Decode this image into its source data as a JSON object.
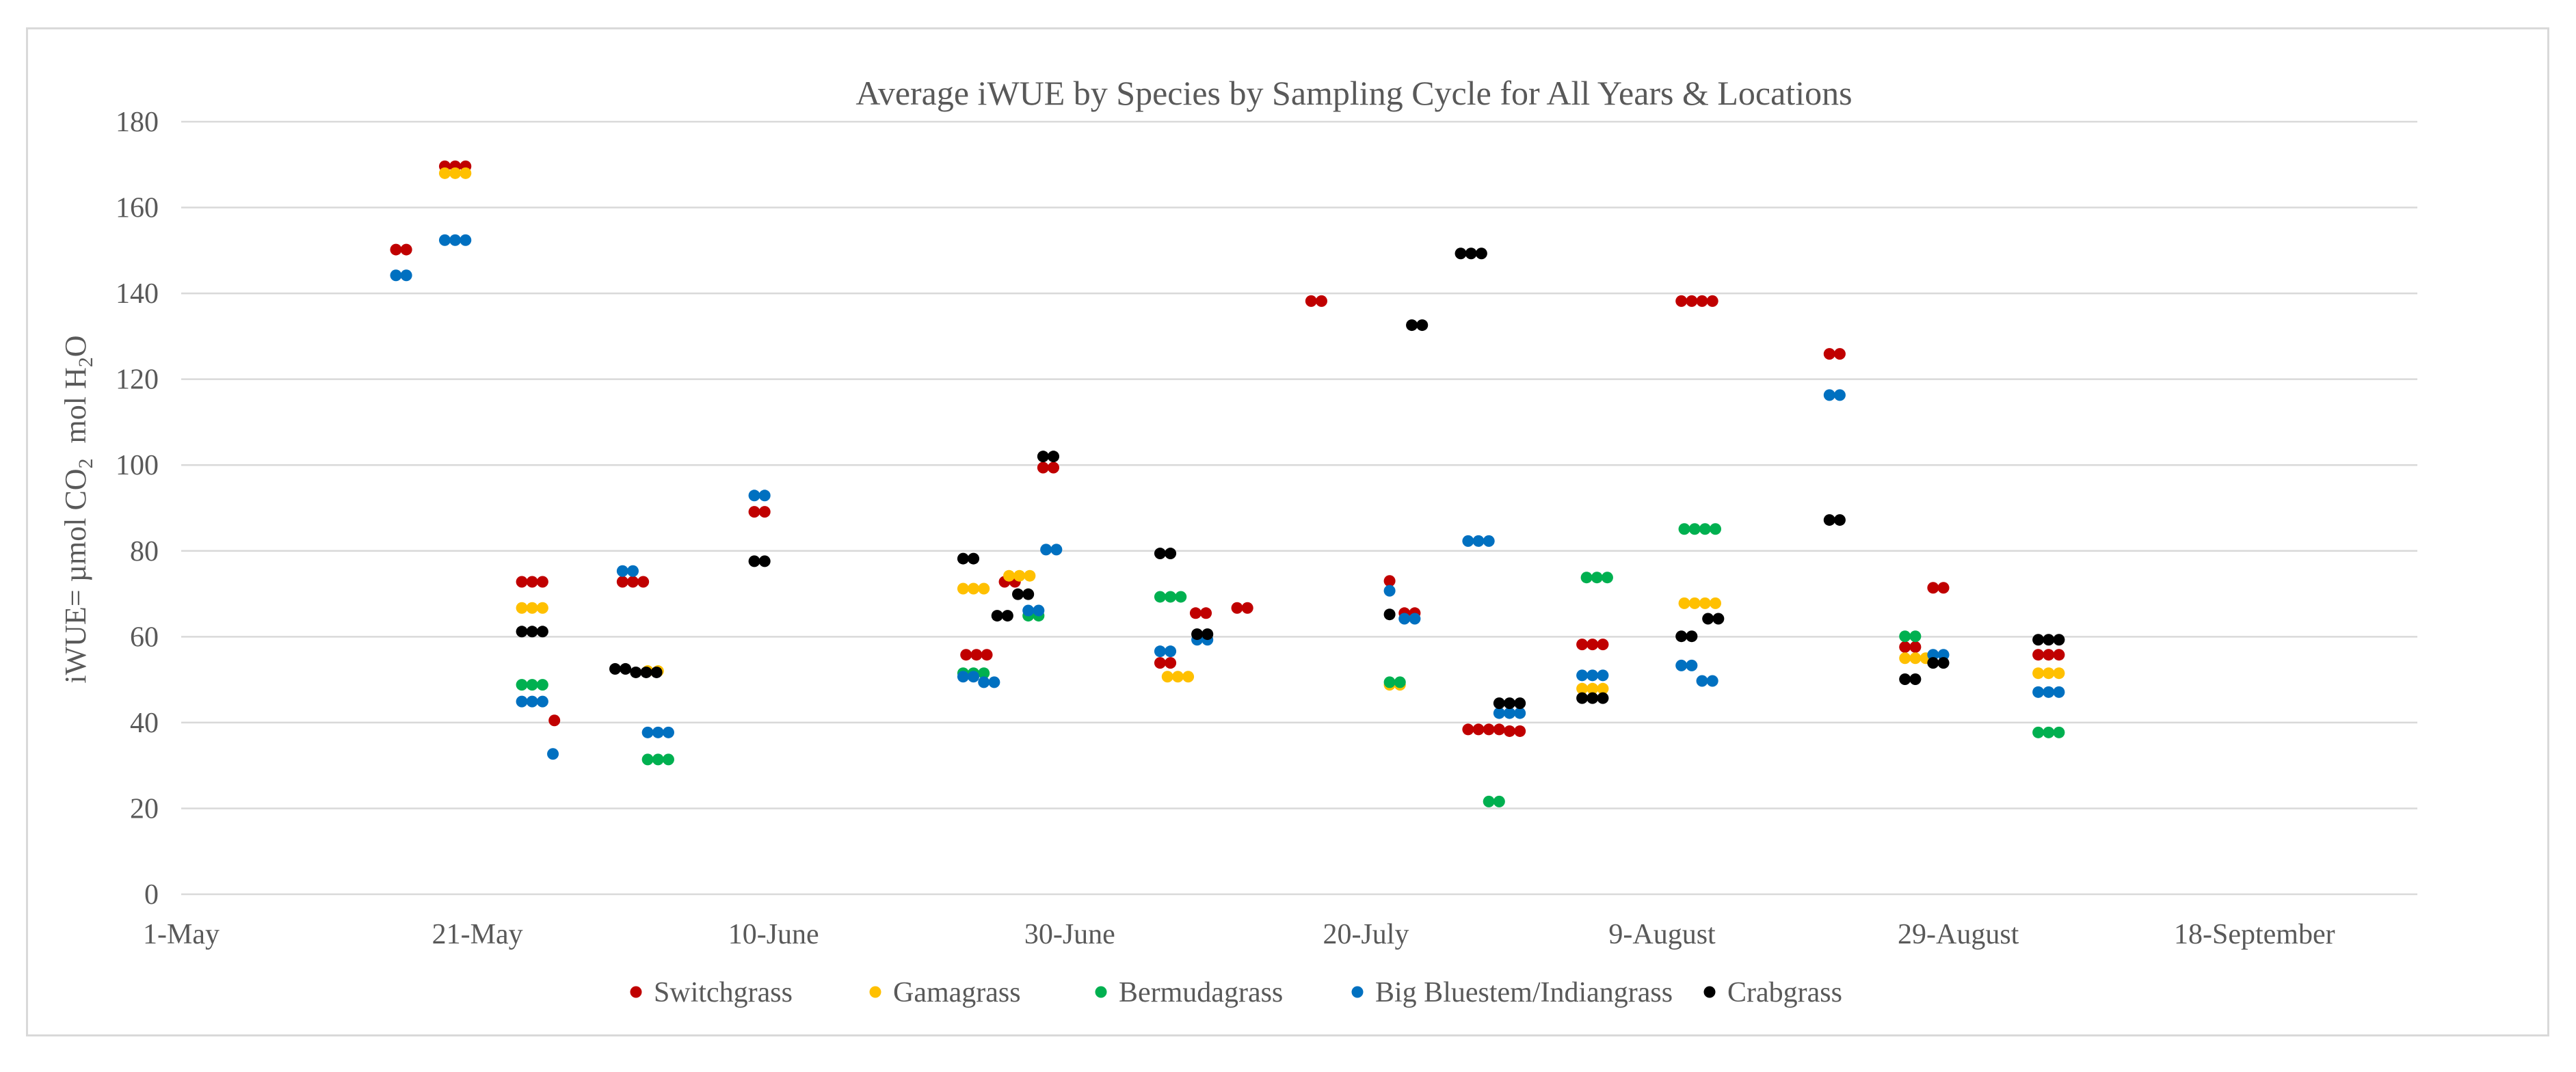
{
  "chart_data": {
    "type": "scatter",
    "title": "Average iWUE by Species by Sampling Cycle for All Years & Locations",
    "ylabel": {
      "prefix": "iWUE= µmol CO",
      "sub1": "2",
      "middle": "  mol H",
      "sub2": "2",
      "suffix": "O"
    },
    "ylim": [
      0,
      180
    ],
    "yticks": [
      0,
      20,
      40,
      60,
      80,
      100,
      120,
      140,
      160,
      180
    ],
    "x_tick_labels": [
      "1-May",
      "21-May",
      "10-June",
      "30-June",
      "20-July",
      "9-August",
      "29-August",
      "18-September"
    ],
    "x_tick_days": [
      0,
      20,
      40,
      60,
      80,
      100,
      120,
      140
    ],
    "xlim": [
      0,
      151
    ],
    "grid": true,
    "legend_position": "bottom",
    "series": [
      {
        "name": "Switchgrass",
        "color": "#c00000",
        "points": [
          [
            14.5,
            150.2
          ],
          [
            15.2,
            150.2
          ],
          [
            17.8,
            169.6
          ],
          [
            18.5,
            169.6
          ],
          [
            19.2,
            169.6
          ],
          [
            23.0,
            72.8
          ],
          [
            23.7,
            72.8
          ],
          [
            24.4,
            72.8
          ],
          [
            25.2,
            40.5
          ],
          [
            29.8,
            72.8
          ],
          [
            30.5,
            72.8
          ],
          [
            31.2,
            72.8
          ],
          [
            38.7,
            89.1
          ],
          [
            39.4,
            89.1
          ],
          [
            53.0,
            55.8
          ],
          [
            53.7,
            55.8
          ],
          [
            54.4,
            55.8
          ],
          [
            55.6,
            72.8
          ],
          [
            56.3,
            72.8
          ],
          [
            58.2,
            99.4
          ],
          [
            58.9,
            99.4
          ],
          [
            66.1,
            53.9
          ],
          [
            66.8,
            53.9
          ],
          [
            68.5,
            65.5
          ],
          [
            69.2,
            65.5
          ],
          [
            71.3,
            66.7
          ],
          [
            72.0,
            66.7
          ],
          [
            76.3,
            138.2
          ],
          [
            77.0,
            138.2
          ],
          [
            81.6,
            73.0
          ],
          [
            82.6,
            65.5
          ],
          [
            83.3,
            65.5
          ],
          [
            86.9,
            38.4
          ],
          [
            87.6,
            38.4
          ],
          [
            88.3,
            38.4
          ],
          [
            89.0,
            38.4
          ],
          [
            89.7,
            38.0
          ],
          [
            90.4,
            38.0
          ],
          [
            94.6,
            58.2
          ],
          [
            95.3,
            58.2
          ],
          [
            96.0,
            58.2
          ],
          [
            101.3,
            138.2
          ],
          [
            102.0,
            138.2
          ],
          [
            102.7,
            138.2
          ],
          [
            103.4,
            138.2
          ],
          [
            111.3,
            125.9
          ],
          [
            112.0,
            125.9
          ],
          [
            116.4,
            57.6
          ],
          [
            117.1,
            57.6
          ],
          [
            118.3,
            71.4
          ],
          [
            119.0,
            71.4
          ],
          [
            125.4,
            55.8
          ],
          [
            126.1,
            55.8
          ],
          [
            126.8,
            55.8
          ]
        ]
      },
      {
        "name": "Gamagrass",
        "color": "#ffc000",
        "points": [
          [
            17.8,
            168.0
          ],
          [
            18.5,
            168.0
          ],
          [
            19.2,
            168.0
          ],
          [
            23.0,
            66.7
          ],
          [
            23.7,
            66.7
          ],
          [
            24.4,
            66.7
          ],
          [
            31.5,
            52.0
          ],
          [
            32.2,
            52.0
          ],
          [
            52.8,
            71.2
          ],
          [
            53.5,
            71.2
          ],
          [
            54.2,
            71.2
          ],
          [
            55.9,
            74.2
          ],
          [
            56.6,
            74.2
          ],
          [
            57.3,
            74.2
          ],
          [
            66.6,
            50.7
          ],
          [
            67.3,
            50.7
          ],
          [
            68.0,
            50.7
          ],
          [
            81.6,
            48.8
          ],
          [
            82.3,
            48.8
          ],
          [
            94.6,
            47.9
          ],
          [
            95.3,
            47.9
          ],
          [
            96.0,
            47.9
          ],
          [
            101.5,
            67.8
          ],
          [
            102.2,
            67.8
          ],
          [
            102.9,
            67.8
          ],
          [
            103.6,
            67.8
          ],
          [
            116.4,
            55.0
          ],
          [
            117.1,
            55.0
          ],
          [
            117.8,
            55.0
          ],
          [
            125.4,
            51.5
          ],
          [
            126.1,
            51.5
          ],
          [
            126.8,
            51.5
          ]
        ]
      },
      {
        "name": "Bermudagrass",
        "color": "#00b050",
        "points": [
          [
            23.0,
            48.8
          ],
          [
            23.7,
            48.8
          ],
          [
            24.4,
            48.8
          ],
          [
            31.5,
            31.4
          ],
          [
            32.2,
            31.4
          ],
          [
            32.9,
            31.4
          ],
          [
            52.8,
            51.5
          ],
          [
            53.5,
            51.5
          ],
          [
            54.2,
            51.5
          ],
          [
            57.2,
            64.9
          ],
          [
            57.9,
            64.9
          ],
          [
            66.1,
            69.3
          ],
          [
            66.8,
            69.3
          ],
          [
            67.5,
            69.3
          ],
          [
            81.6,
            49.4
          ],
          [
            82.3,
            49.4
          ],
          [
            88.3,
            21.6
          ],
          [
            89.0,
            21.6
          ],
          [
            94.9,
            73.8
          ],
          [
            95.6,
            73.8
          ],
          [
            96.3,
            73.8
          ],
          [
            101.5,
            85.1
          ],
          [
            102.2,
            85.1
          ],
          [
            102.9,
            85.1
          ],
          [
            103.6,
            85.1
          ],
          [
            116.4,
            60.1
          ],
          [
            117.1,
            60.1
          ],
          [
            125.4,
            37.7
          ],
          [
            126.1,
            37.7
          ],
          [
            126.8,
            37.7
          ]
        ]
      },
      {
        "name": "Big Bluestem/Indiangrass",
        "color": "#0070c0",
        "points": [
          [
            14.5,
            144.2
          ],
          [
            15.2,
            144.2
          ],
          [
            17.8,
            152.4
          ],
          [
            18.5,
            152.4
          ],
          [
            19.2,
            152.4
          ],
          [
            23.0,
            44.9
          ],
          [
            23.7,
            44.9
          ],
          [
            24.4,
            44.9
          ],
          [
            25.1,
            32.7
          ],
          [
            29.8,
            75.3
          ],
          [
            30.5,
            75.3
          ],
          [
            31.5,
            37.7
          ],
          [
            32.2,
            37.7
          ],
          [
            32.9,
            37.7
          ],
          [
            38.7,
            92.9
          ],
          [
            39.4,
            92.9
          ],
          [
            52.8,
            50.7
          ],
          [
            53.5,
            50.7
          ],
          [
            54.2,
            49.4
          ],
          [
            54.9,
            49.4
          ],
          [
            57.2,
            66.1
          ],
          [
            57.9,
            66.1
          ],
          [
            58.4,
            80.3
          ],
          [
            59.1,
            80.3
          ],
          [
            66.1,
            56.6
          ],
          [
            66.8,
            56.6
          ],
          [
            68.6,
            59.3
          ],
          [
            69.3,
            59.3
          ],
          [
            81.6,
            70.7
          ],
          [
            82.6,
            64.2
          ],
          [
            83.3,
            64.2
          ],
          [
            86.9,
            82.3
          ],
          [
            87.6,
            82.3
          ],
          [
            88.3,
            82.3
          ],
          [
            89.0,
            42.2
          ],
          [
            89.7,
            42.2
          ],
          [
            90.4,
            42.2
          ],
          [
            94.6,
            51.0
          ],
          [
            95.3,
            51.0
          ],
          [
            96.0,
            51.0
          ],
          [
            101.3,
            53.3
          ],
          [
            102.0,
            53.3
          ],
          [
            102.7,
            49.7
          ],
          [
            103.4,
            49.7
          ],
          [
            111.3,
            116.3
          ],
          [
            112.0,
            116.3
          ],
          [
            118.3,
            55.8
          ],
          [
            119.0,
            55.8
          ],
          [
            125.4,
            47.1
          ],
          [
            126.1,
            47.1
          ],
          [
            126.8,
            47.1
          ]
        ]
      },
      {
        "name": "Crabgrass",
        "color": "#000000",
        "points": [
          [
            23.0,
            61.2
          ],
          [
            23.7,
            61.2
          ],
          [
            24.4,
            61.2
          ],
          [
            29.3,
            52.5
          ],
          [
            30.0,
            52.5
          ],
          [
            30.7,
            51.7
          ],
          [
            31.4,
            51.7
          ],
          [
            32.1,
            51.7
          ],
          [
            38.7,
            77.6
          ],
          [
            39.4,
            77.6
          ],
          [
            52.8,
            78.2
          ],
          [
            53.5,
            78.2
          ],
          [
            55.1,
            64.9
          ],
          [
            55.8,
            64.9
          ],
          [
            56.5,
            69.9
          ],
          [
            57.2,
            69.9
          ],
          [
            58.2,
            102.0
          ],
          [
            58.9,
            102.0
          ],
          [
            66.1,
            79.4
          ],
          [
            66.8,
            79.4
          ],
          [
            68.6,
            60.6
          ],
          [
            69.3,
            60.6
          ],
          [
            81.6,
            65.2
          ],
          [
            83.1,
            132.6
          ],
          [
            83.8,
            132.6
          ],
          [
            86.4,
            149.3
          ],
          [
            87.1,
            149.3
          ],
          [
            87.8,
            149.3
          ],
          [
            89.0,
            44.5
          ],
          [
            89.7,
            44.5
          ],
          [
            90.4,
            44.5
          ],
          [
            94.6,
            45.7
          ],
          [
            95.3,
            45.7
          ],
          [
            96.0,
            45.7
          ],
          [
            101.3,
            60.1
          ],
          [
            102.0,
            60.1
          ],
          [
            103.1,
            64.2
          ],
          [
            103.8,
            64.2
          ],
          [
            111.3,
            87.2
          ],
          [
            112.0,
            87.2
          ],
          [
            116.4,
            50.1
          ],
          [
            117.1,
            50.1
          ],
          [
            118.3,
            53.9
          ],
          [
            119.0,
            53.9
          ],
          [
            125.4,
            59.3
          ],
          [
            126.1,
            59.3
          ],
          [
            126.8,
            59.3
          ]
        ]
      }
    ]
  }
}
